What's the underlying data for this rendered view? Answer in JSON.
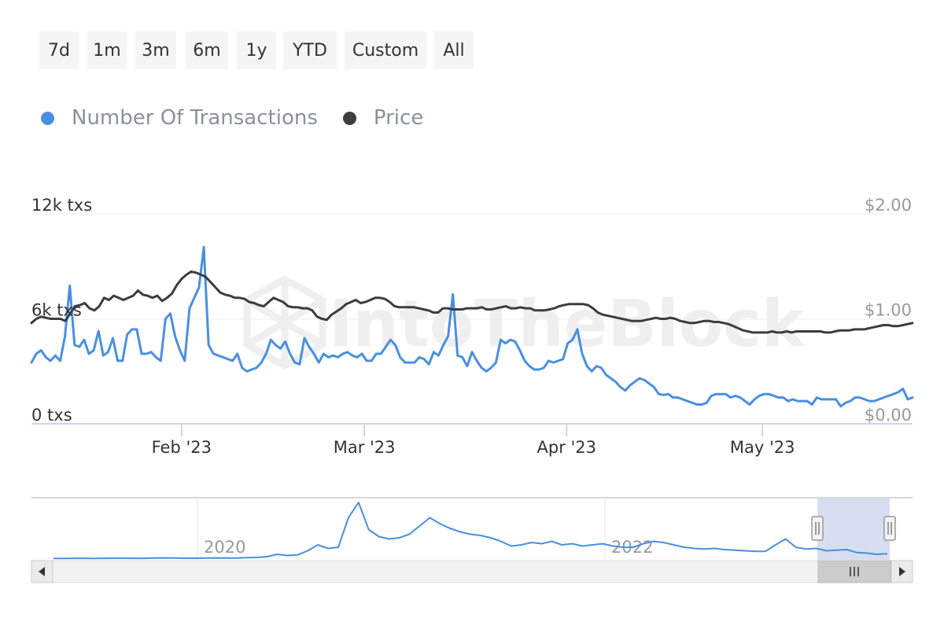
{
  "range_buttons": [
    {
      "id": "7d",
      "label": "7d"
    },
    {
      "id": "1m",
      "label": "1m"
    },
    {
      "id": "3m",
      "label": "3m"
    },
    {
      "id": "6m",
      "label": "6m"
    },
    {
      "id": "1y",
      "label": "1y"
    },
    {
      "id": "ytd",
      "label": "YTD"
    },
    {
      "id": "custom",
      "label": "Custom"
    },
    {
      "id": "all",
      "label": "All"
    }
  ],
  "legend": [
    {
      "name": "Number Of Transactions",
      "color": "#4a8fde"
    },
    {
      "name": "Price",
      "color": "#3a3d42"
    }
  ],
  "watermark": "IntoTheBlock",
  "navigator": {
    "labels": [
      "2020",
      "2022"
    ]
  },
  "chart_data": {
    "type": "line",
    "x_start": "2023-01-09",
    "x_end": "2023-05-24",
    "x_ticks": [
      "Feb '23",
      "Mar '23",
      "Apr '23",
      "May '23"
    ],
    "x_tick_dates": [
      "2023-02-01",
      "2023-03-01",
      "2023-04-01",
      "2023-05-01"
    ],
    "y_left": {
      "ticks": [
        0,
        6000,
        12000
      ],
      "labels": [
        "0 txs",
        "6k txs",
        "12k txs"
      ],
      "range": [
        0,
        12000
      ]
    },
    "y_right": {
      "ticks": [
        0,
        1,
        2
      ],
      "labels": [
        "$0.00",
        "$1.00",
        "$2.00"
      ],
      "range": [
        0,
        2
      ]
    },
    "grid": true,
    "series": [
      {
        "name": "Number Of Transactions",
        "axis": "left",
        "color": "#4a8fde",
        "values": [
          3500,
          4000,
          4200,
          3800,
          3600,
          3900,
          3600,
          5000,
          7900,
          4500,
          4400,
          4800,
          4000,
          4200,
          5300,
          3900,
          4100,
          4900,
          3600,
          3600,
          5100,
          5400,
          5400,
          4000,
          4000,
          4100,
          3800,
          3600,
          6000,
          6300,
          5000,
          4200,
          3600,
          6600,
          7200,
          7800,
          10100,
          4500,
          4000,
          3900,
          3800,
          3700,
          3600,
          4000,
          3200,
          3000,
          3100,
          3200,
          3500,
          4000,
          4800,
          4500,
          4300,
          4700,
          4000,
          3500,
          3400,
          4900,
          4400,
          4000,
          3500,
          4000,
          3800,
          3900,
          3800,
          4000,
          4100,
          3900,
          3800,
          4000,
          3600,
          3600,
          4000,
          4000,
          4400,
          4800,
          4500,
          3800,
          3500,
          3500,
          3500,
          3800,
          3700,
          3400,
          4100,
          3900,
          4500,
          5000,
          7400,
          3900,
          3800,
          3300,
          4100,
          3600,
          3200,
          3000,
          3200,
          3500,
          4800,
          4600,
          4800,
          4700,
          4200,
          3600,
          3300,
          3100,
          3100,
          3200,
          3600,
          3500,
          3600,
          3700,
          4600,
          4800,
          5400,
          4000,
          3300,
          3000,
          3300,
          3200,
          2800,
          2600,
          2400,
          2100,
          1900,
          2200,
          2400,
          2600,
          2500,
          2300,
          2100,
          1700,
          1650,
          1700,
          1500,
          1500,
          1400,
          1300,
          1200,
          1100,
          1100,
          1200,
          1600,
          1700,
          1700,
          1700,
          1500,
          1600,
          1500,
          1300,
          1100,
          1400,
          1600,
          1700,
          1700,
          1600,
          1500,
          1500,
          1300,
          1400,
          1300,
          1300,
          1300,
          1100,
          1500,
          1400,
          1400,
          1400,
          1400,
          1000,
          1200,
          1300,
          1500,
          1500,
          1400,
          1300,
          1300,
          1400,
          1500,
          1600,
          1700,
          1800,
          2000,
          1400,
          1500
        ]
      },
      {
        "name": "Price",
        "axis": "right",
        "color": "#3a3d42",
        "values": [
          0.96,
          1.0,
          1.02,
          1.01,
          1.0,
          1.0,
          1.0,
          0.98,
          1.05,
          1.12,
          1.13,
          1.15,
          1.1,
          1.08,
          1.12,
          1.2,
          1.18,
          1.22,
          1.2,
          1.18,
          1.2,
          1.22,
          1.27,
          1.23,
          1.22,
          1.2,
          1.22,
          1.17,
          1.2,
          1.24,
          1.32,
          1.38,
          1.42,
          1.45,
          1.44,
          1.42,
          1.4,
          1.35,
          1.3,
          1.25,
          1.23,
          1.22,
          1.2,
          1.2,
          1.19,
          1.16,
          1.15,
          1.13,
          1.12,
          1.16,
          1.2,
          1.18,
          1.16,
          1.12,
          1.11,
          1.11,
          1.1,
          1.1,
          1.08,
          1.02,
          1.0,
          0.99,
          1.04,
          1.07,
          1.1,
          1.14,
          1.16,
          1.18,
          1.15,
          1.16,
          1.18,
          1.2,
          1.2,
          1.19,
          1.16,
          1.12,
          1.11,
          1.11,
          1.11,
          1.11,
          1.1,
          1.09,
          1.08,
          1.06,
          1.06,
          1.1,
          1.1,
          1.09,
          1.09,
          1.09,
          1.1,
          1.1,
          1.1,
          1.11,
          1.09,
          1.09,
          1.1,
          1.11,
          1.12,
          1.1,
          1.1,
          1.11,
          1.1,
          1.1,
          1.08,
          1.08,
          1.08,
          1.09,
          1.1,
          1.12,
          1.13,
          1.14,
          1.14,
          1.14,
          1.14,
          1.13,
          1.1,
          1.06,
          1.04,
          1.03,
          1.02,
          1.01,
          1.0,
          0.99,
          0.98,
          0.98,
          0.98,
          0.99,
          1.0,
          1.01,
          1.0,
          1.0,
          1.01,
          1.0,
          0.98,
          0.97,
          0.96,
          0.96,
          0.97,
          0.98,
          0.98,
          0.97,
          0.97,
          0.96,
          0.95,
          0.93,
          0.91,
          0.89,
          0.88,
          0.87,
          0.87,
          0.87,
          0.87,
          0.88,
          0.87,
          0.87,
          0.88,
          0.87,
          0.88,
          0.88,
          0.88,
          0.88,
          0.88,
          0.88,
          0.87,
          0.87,
          0.88,
          0.89,
          0.89,
          0.89,
          0.9,
          0.9,
          0.9,
          0.91,
          0.92,
          0.93,
          0.94,
          0.94,
          0.93,
          0.93,
          0.94,
          0.95,
          0.96
        ]
      }
    ],
    "navigator_series": [
      50,
      50,
      60,
      60,
      50,
      60,
      70,
      70,
      60,
      60,
      80,
      90,
      80,
      70,
      70,
      80,
      90,
      80,
      80,
      120,
      130,
      200,
      400,
      300,
      350,
      700,
      1200,
      900,
      1000,
      3500,
      4800,
      2500,
      1900,
      1700,
      1800,
      2100,
      2800,
      3500,
      3000,
      2600,
      2300,
      2100,
      2000,
      1800,
      1500,
      1100,
      1200,
      1400,
      1300,
      1500,
      1200,
      1300,
      1100,
      1200,
      1300,
      1100,
      1000,
      1000,
      1300,
      1500,
      1400,
      1200,
      1000,
      900,
      850,
      900,
      800,
      750,
      700,
      650,
      650,
      1200,
      1700,
      1000,
      850,
      900,
      700,
      750,
      800,
      550,
      500,
      400,
      450
    ]
  }
}
